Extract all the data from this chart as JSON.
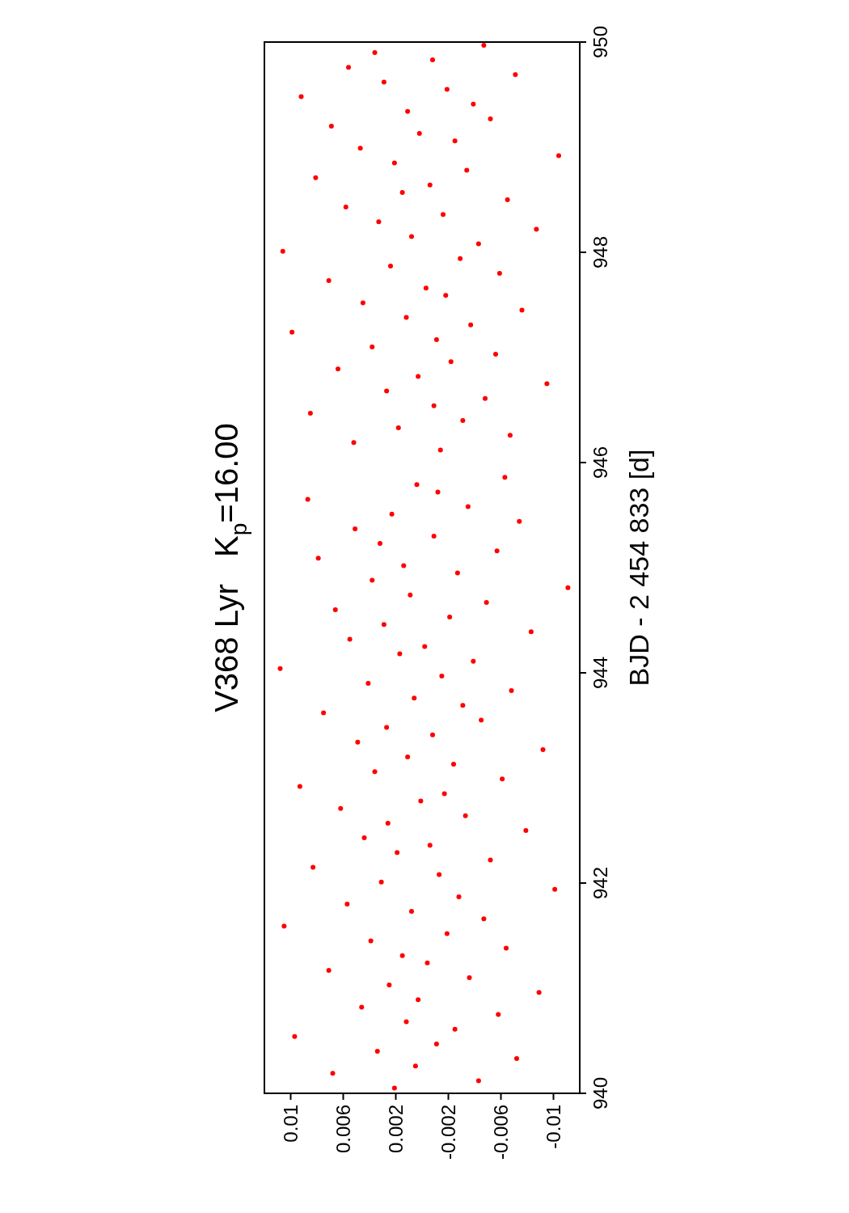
{
  "chart_data": {
    "type": "scatter",
    "title": "V368 Lyr   K$_{p}$=16.00",
    "ylabel": "BJD - 2 454 833 [d]",
    "values": [
      940.05,
      940.12,
      940.19,
      940.26,
      940.33,
      940.4,
      940.47,
      940.54,
      940.61,
      940.68,
      940.75,
      940.82,
      940.89,
      940.96,
      941.03,
      941.1,
      941.17,
      941.24,
      941.31,
      941.38,
      941.45,
      941.52,
      941.59,
      941.66,
      941.73,
      941.8,
      941.87,
      941.94,
      942.01,
      942.08,
      942.15,
      942.22,
      942.29,
      942.36,
      942.43,
      942.5,
      942.57,
      942.64,
      942.71,
      942.78,
      942.85,
      942.92,
      942.99,
      943.06,
      943.13,
      943.2,
      943.27,
      943.34,
      943.41,
      943.48,
      943.55,
      943.62,
      943.69,
      943.76,
      943.83,
      943.9,
      943.97,
      944.04,
      944.11,
      944.18,
      944.25,
      944.32,
      944.39,
      944.46,
      944.53,
      944.6,
      944.67,
      944.74,
      944.81,
      944.88,
      944.95,
      945.02,
      945.09,
      945.16,
      945.23,
      945.3,
      945.37,
      945.44,
      945.51,
      945.58,
      945.65,
      945.72,
      945.79,
      945.86,
      946.12,
      946.19,
      946.26,
      946.33,
      946.4,
      946.47,
      946.54,
      946.61,
      946.68,
      946.75,
      946.82,
      946.89,
      946.96,
      947.03,
      947.1,
      947.17,
      947.24,
      947.31,
      947.38,
      947.45,
      947.52,
      947.59,
      947.66,
      947.73,
      947.8,
      947.87,
      947.94,
      948.01,
      948.08,
      948.15,
      948.22,
      948.29,
      948.36,
      948.43,
      948.5,
      948.57,
      948.64,
      948.71,
      948.78,
      948.85,
      948.92,
      948.99,
      949.06,
      949.13,
      949.2,
      949.27,
      949.34,
      949.41,
      949.48,
      949.55,
      949.62,
      949.69,
      949.76,
      949.83,
      949.9,
      949.97
    ],
    "x": [
      0.0021,
      -0.0043,
      0.0068,
      0.0005,
      -0.0072,
      0.0034,
      -0.0011,
      0.0097,
      -0.0025,
      0.0012,
      -0.0058,
      0.0046,
      0.0003,
      -0.0089,
      0.0025,
      -0.0036,
      0.0071,
      -0.0004,
      0.0015,
      -0.0064,
      0.0039,
      -0.0019,
      0.0105,
      -0.0047,
      0.0008,
      0.0057,
      -0.0028,
      -0.0101,
      0.0031,
      -0.0013,
      0.0083,
      -0.0052,
      0.0019,
      -0.0006,
      0.0044,
      -0.0079,
      0.0026,
      -0.0033,
      0.0062,
      0.0001,
      -0.0017,
      0.0093,
      -0.0061,
      0.0036,
      -0.0024,
      0.0011,
      -0.0092,
      0.0049,
      -0.0008,
      0.0027,
      -0.0045,
      0.0075,
      -0.0031,
      0.0006,
      -0.0068,
      0.0041,
      -0.0015,
      0.0108,
      -0.0039,
      0.0017,
      -0.0002,
      0.0055,
      -0.0083,
      0.0029,
      -0.0021,
      0.0066,
      -0.0049,
      0.0009,
      -0.0111,
      0.0038,
      -0.0027,
      0.0014,
      0.0079,
      -0.0057,
      0.0032,
      -0.0009,
      0.0051,
      -0.0074,
      0.0023,
      -0.0035,
      0.0087,
      -0.0012,
      0.0004,
      -0.0063,
      -0.0014,
      0.0052,
      -0.0067,
      0.0018,
      -0.0031,
      0.0085,
      -0.0009,
      -0.0048,
      0.0027,
      -0.0095,
      0.0003,
      0.0064,
      -0.0022,
      -0.0056,
      0.0038,
      -0.0011,
      0.0099,
      -0.0037,
      0.0012,
      -0.0076,
      0.0045,
      -0.0018,
      -0.0003,
      0.0071,
      -0.0059,
      0.0024,
      -0.0029,
      0.0106,
      -0.0043,
      0.0008,
      -0.0087,
      0.0033,
      -0.0016,
      0.0058,
      -0.0065,
      0.0015,
      -0.0006,
      0.0081,
      -0.0034,
      0.0021,
      -0.0104,
      0.0047,
      -0.0025,
      0.0002,
      0.0069,
      -0.0052,
      0.0011,
      -0.0039,
      0.0092,
      -0.0019,
      0.0029,
      -0.0071,
      0.0056,
      -0.0008,
      0.0036,
      -0.0047
    ],
    "color": "#ff0000",
    "marker": "circle",
    "xlim": [
      0.012,
      -0.012
    ],
    "xticks": [
      0.01,
      0.006,
      0.002,
      -0.002,
      -0.006,
      -0.01
    ],
    "ylim": [
      940,
      950
    ],
    "yticks": [
      940,
      942,
      944,
      946,
      948,
      950
    ],
    "grid": false
  }
}
